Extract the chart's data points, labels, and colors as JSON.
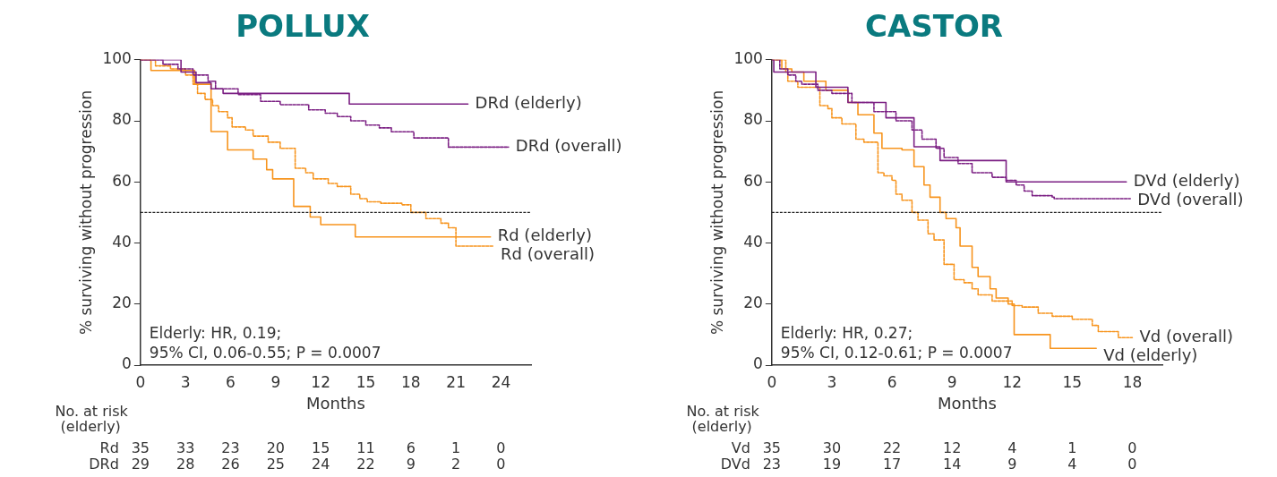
{
  "chart_data": [
    {
      "type": "step",
      "title": "POLLUX",
      "xlabel": "Months",
      "ylabel": "% surviving without progression",
      "xlim": [
        0,
        26
      ],
      "xticks": [
        0,
        3,
        6,
        9,
        12,
        15,
        18,
        21,
        24
      ],
      "ylim": [
        0,
        100
      ],
      "yticks": [
        0,
        20,
        40,
        60,
        80,
        100
      ],
      "grid": false,
      "legend": false,
      "ref_lines": [
        {
          "axis": "y",
          "value": 50,
          "color": "#222222",
          "line_style": "dashed"
        }
      ],
      "annotations": [
        "Elderly: HR, 0.19;",
        "95% CI, 0.06-0.55; P = 0.0007",
        "No. at risk",
        "(elderly)",
        "Rd 35 33 23 20 15 11 6 1 0",
        "DRd 29 28 26 25 24 22 9 2 0"
      ],
      "series": [
        {
          "name": "DRd (elderly)",
          "color": "#7b1f83",
          "line_style": "solid",
          "x": [
            0,
            2.7,
            3.7,
            4.7,
            5.5,
            13.9,
            21.8
          ],
          "values": [
            100,
            96,
            92.5,
            90.5,
            89,
            85.5,
            85.5
          ]
        },
        {
          "name": "DRd (overall)",
          "color": "#7b1f83",
          "line_style": "dashed",
          "x": [
            0,
            1.5,
            2.5,
            3.5,
            4.5,
            5,
            6.5,
            8,
            9.3,
            11.2,
            12.3,
            13.1,
            14,
            15,
            15.9,
            16.7,
            18.2,
            20.5,
            24.5
          ],
          "values": [
            100,
            98.5,
            97,
            95,
            93,
            90.5,
            88.6,
            86.4,
            85.3,
            83.6,
            82.5,
            81.4,
            80,
            78.6,
            77.7,
            76.4,
            74.4,
            71.4,
            71.4
          ]
        },
        {
          "name": "Rd (elderly)",
          "color": "#f7941d",
          "line_style": "solid",
          "x": [
            0,
            0.7,
            3.6,
            4.7,
            5.8,
            7.5,
            8.4,
            8.8,
            10.2,
            11.3,
            12,
            14.3,
            23.3
          ],
          "values": [
            100,
            96.5,
            92,
            76.5,
            70.5,
            67.5,
            64,
            61,
            52,
            48.5,
            46,
            42,
            42
          ]
        },
        {
          "name": "Rd (overall)",
          "color": "#f7941d",
          "line_style": "dashed",
          "x": [
            0,
            1,
            2,
            3,
            3.5,
            3.8,
            4.3,
            4.8,
            5.2,
            5.8,
            6.1,
            7,
            7.5,
            8.5,
            9.3,
            10.3,
            11,
            11.5,
            12.5,
            13.1,
            14,
            14.6,
            15.1,
            16,
            17.4,
            18,
            19,
            20,
            20.5,
            21,
            21,
            23.5
          ],
          "values": [
            100,
            98,
            97,
            95,
            92,
            89,
            87,
            85,
            83,
            81,
            78,
            77,
            75,
            73,
            71,
            64.5,
            63,
            61,
            59.5,
            58.5,
            56,
            54.5,
            53.5,
            53,
            52.5,
            50,
            48,
            46.5,
            45,
            44.5,
            39,
            39
          ]
        }
      ]
    },
    {
      "type": "step",
      "title": "CASTOR",
      "xlabel": "Months",
      "ylabel": "% surviving without progression",
      "xlim": [
        0,
        19.5
      ],
      "xticks": [
        0,
        3,
        6,
        9,
        12,
        15,
        18
      ],
      "ylim": [
        0,
        100
      ],
      "yticks": [
        0,
        20,
        40,
        60,
        80,
        100
      ],
      "grid": false,
      "legend": false,
      "ref_lines": [
        {
          "axis": "y",
          "value": 50,
          "color": "#222222",
          "line_style": "dashed"
        }
      ],
      "annotations": [
        "Elderly: HR, 0.27;",
        "95% CI, 0.12-0.61; P = 0.0007",
        "No. at risk",
        "(elderly)",
        "Vd 35 30 22 12 4 1 0",
        "DVd 23 19 17 14 9 4 0"
      ],
      "series": [
        {
          "name": "DVd (elderly)",
          "color": "#7b1f83",
          "line_style": "solid",
          "x": [
            0,
            0.1,
            2.2,
            3.8,
            5.7,
            7.1,
            8.4,
            11.7,
            17.7
          ],
          "values": [
            100,
            96,
            91,
            86,
            81,
            71.5,
            67,
            60,
            60
          ]
        },
        {
          "name": "DVd (overall)",
          "color": "#7b1f83",
          "line_style": "dashed",
          "x": [
            0,
            0.4,
            0.8,
            1.2,
            1.5,
            2.3,
            3,
            4,
            5.1,
            6.2,
            7,
            7.5,
            8.2,
            8.6,
            9.3,
            10,
            11,
            11.7,
            12.2,
            12.6,
            13,
            14,
            14.1,
            17.9
          ],
          "values": [
            100,
            97,
            95,
            93,
            92,
            90,
            89,
            86,
            83,
            80,
            77,
            74,
            71,
            68,
            66,
            63,
            61.5,
            60.5,
            59,
            57,
            55.5,
            55,
            54.5,
            54.5
          ]
        },
        {
          "name": "Vd (overall)",
          "color": "#f7941d",
          "line_style": "dashed",
          "x": [
            0,
            0.7,
            0.8,
            1.3,
            2.4,
            2.8,
            3,
            3.5,
            4.2,
            4.6,
            5.3,
            5.6,
            6,
            6.2,
            6.5,
            7,
            7.3,
            7.8,
            8.1,
            8.6,
            9.1,
            9.6,
            10,
            10.3,
            11,
            12,
            12.5,
            13.3,
            14,
            15,
            16,
            16.3,
            17.3,
            18
          ],
          "values": [
            100,
            96,
            93,
            91,
            85,
            84,
            81,
            79,
            74,
            73,
            63,
            62,
            60.5,
            56,
            54,
            50,
            47.5,
            43,
            41,
            33,
            28,
            27,
            25,
            23,
            21,
            19.5,
            19,
            17,
            16,
            15,
            13,
            11,
            9,
            9
          ]
        },
        {
          "name": "Vd (elderly)",
          "color": "#f7941d",
          "line_style": "solid",
          "x": [
            0,
            0.5,
            1,
            1.6,
            2.7,
            3.8,
            4.3,
            5.1,
            5.5,
            6.5,
            7.1,
            7.6,
            7.9,
            8.4,
            8.7,
            9.2,
            9.4,
            10,
            10.3,
            10.9,
            11.2,
            11.8,
            12.1,
            13.9,
            13.9,
            16.2
          ],
          "values": [
            100,
            97,
            96,
            93,
            90,
            86,
            82,
            76,
            71,
            70.5,
            65,
            59,
            55,
            50,
            48,
            45,
            39,
            32,
            29,
            25,
            22,
            20,
            10,
            10,
            5.5,
            5.5
          ]
        }
      ]
    }
  ]
}
